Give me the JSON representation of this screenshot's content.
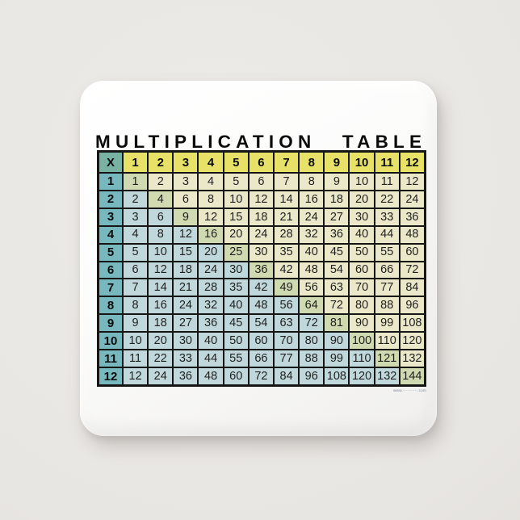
{
  "scene": {
    "background_color": "#e8e6e2",
    "button_color": "#fbfbfa",
    "object": "square pin-back button product photo"
  },
  "fine_print": "www.··········.com",
  "colors": {
    "header_yellow": "#e7e168",
    "corner_teal": "#78b2a3",
    "row_header_teal": "#77b8bf",
    "below_diagonal_blue": "#c0d8db",
    "above_diagonal_cream": "#ebe8c9",
    "diagonal_green": "#cfdab0",
    "grid_line": "#161616"
  },
  "chart_data": {
    "type": "table",
    "title": "MULTIPLICATION TABLE",
    "corner_label": "X",
    "col_headers": [
      "1",
      "2",
      "3",
      "4",
      "5",
      "6",
      "7",
      "8",
      "9",
      "10",
      "11",
      "12"
    ],
    "row_headers": [
      "1",
      "2",
      "3",
      "4",
      "5",
      "6",
      "7",
      "8",
      "9",
      "10",
      "11",
      "12"
    ],
    "values": [
      [
        1,
        2,
        3,
        4,
        5,
        6,
        7,
        8,
        9,
        10,
        11,
        12
      ],
      [
        2,
        4,
        6,
        8,
        10,
        12,
        14,
        16,
        18,
        20,
        22,
        24
      ],
      [
        3,
        6,
        9,
        12,
        15,
        18,
        21,
        24,
        27,
        30,
        33,
        36
      ],
      [
        4,
        8,
        12,
        16,
        20,
        24,
        28,
        32,
        36,
        40,
        44,
        48
      ],
      [
        5,
        10,
        15,
        20,
        25,
        30,
        35,
        40,
        45,
        50,
        55,
        60
      ],
      [
        6,
        12,
        18,
        24,
        30,
        36,
        42,
        48,
        54,
        60,
        66,
        72
      ],
      [
        7,
        14,
        21,
        28,
        35,
        42,
        49,
        56,
        63,
        70,
        77,
        84
      ],
      [
        8,
        16,
        24,
        32,
        40,
        48,
        56,
        64,
        72,
        80,
        88,
        96
      ],
      [
        9,
        18,
        27,
        36,
        45,
        54,
        63,
        72,
        81,
        90,
        99,
        108
      ],
      [
        10,
        20,
        30,
        40,
        50,
        60,
        70,
        80,
        90,
        100,
        110,
        120
      ],
      [
        11,
        22,
        33,
        44,
        55,
        66,
        77,
        88,
        99,
        110,
        121,
        132
      ],
      [
        12,
        24,
        36,
        48,
        60,
        72,
        84,
        96,
        108,
        120,
        132,
        144
      ]
    ],
    "layout": {
      "legend": "none",
      "grid": "on",
      "color_rule": "row headers teal, column headers yellow, squares (diagonal) green, below diagonal blue, above diagonal cream"
    }
  }
}
